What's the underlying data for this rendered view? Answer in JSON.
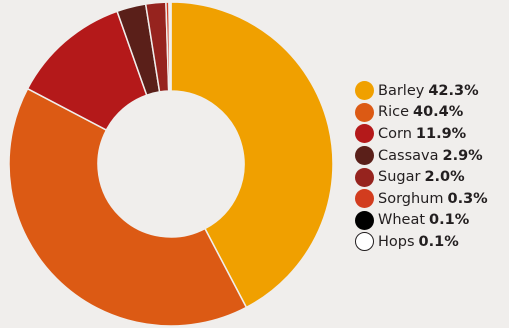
{
  "chart_data": {
    "type": "pie",
    "variant": "donut",
    "legend_position": "right",
    "series": [
      {
        "name": "Barley",
        "value": 42.3,
        "label": "42.3%",
        "color": "#f0a000"
      },
      {
        "name": "Rice",
        "value": 40.4,
        "label": "40.4%",
        "color": "#dc5a14"
      },
      {
        "name": "Corn",
        "value": 11.9,
        "label": "11.9%",
        "color": "#b4191a"
      },
      {
        "name": "Cassava",
        "value": 2.9,
        "label": "2.9%",
        "color": "#5a1f19"
      },
      {
        "name": "Sugar",
        "value": 2.0,
        "label": "2.0%",
        "color": "#96231e"
      },
      {
        "name": "Sorghum",
        "value": 0.3,
        "label": "0.3%",
        "color": "#d23c1e"
      },
      {
        "name": "Wheat",
        "value": 0.1,
        "label": "0.1%",
        "color": "#000000"
      },
      {
        "name": "Hops",
        "value": 0.1,
        "label": "0.1%",
        "color": "#ffffff"
      }
    ]
  }
}
